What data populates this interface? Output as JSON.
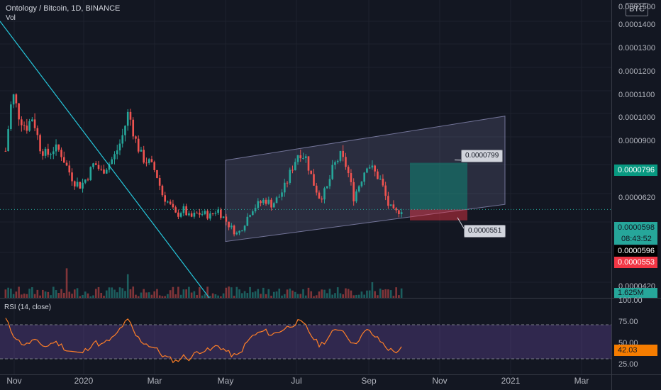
{
  "header": {
    "symbol": "Ontology / Bitcoin, 1D, BINANCE",
    "volume_label": "Vol",
    "rsi_label": "RSI (14, close)"
  },
  "currency_button": "BTC",
  "price_axis": {
    "ticks": [
      "0.0001500",
      "0.0001400",
      "0.0001300",
      "0.0001200",
      "0.0001100",
      "0.0001000",
      "0.0000900",
      "0.0000620",
      "0.0000420"
    ],
    "last_price": "0.0000598",
    "countdown": "08:43:52",
    "tag_596": "0.0000596",
    "target": "0.0000796",
    "stop": "0.0000553",
    "volume_tag": "1.625M"
  },
  "rsi_axis": {
    "ticks": [
      "100.00",
      "75.00",
      "50.00",
      "25.00"
    ],
    "value": "42.03"
  },
  "time_axis": [
    "Nov",
    "2020",
    "Mar",
    "May",
    "Jul",
    "Sep",
    "Nov",
    "2021",
    "Mar"
  ],
  "callouts": {
    "upper": "0.0000799",
    "lower": "0.0000551"
  },
  "colors": {
    "background": "#131722",
    "up": "#26a69a",
    "down": "#ef5350",
    "trendline": "#26c6da",
    "rsi_line": "#ff7f27",
    "rsi_band": "#7e57c2",
    "target_green": "#089981",
    "stop_red": "#f23645"
  },
  "chart_data": {
    "type": "candlestick",
    "title": "Ontology / Bitcoin, 1D, BINANCE",
    "price_range": [
      3.8e-05,
      0.00015
    ],
    "closes_approx": [
      8.5e-05,
      0.00011,
      0.0001,
      9.5e-05,
      0.0001,
      8.7e-05,
      8.3e-05,
      8.6e-05,
      8.5e-05,
      7.8e-05,
      7.2e-05,
      7e-05,
      7.4e-05,
      8e-05,
      7.6e-05,
      7.9e-05,
      8.3e-05,
      9e-05,
      0.000102,
      9e-05,
      8.2e-05,
      8e-05,
      7.6e-05,
      6.6e-05,
      6.2e-05,
      5.7e-05,
      6e-05,
      5.6e-05,
      5.8e-05,
      5.8e-05,
      5.7e-05,
      6e-05,
      5.6e-05,
      5.2e-05,
      4.9e-05,
      5.4e-05,
      6e-05,
      6.2e-05,
      6.4e-05,
      6.2e-05,
      6.5e-05,
      7e-05,
      7.8e-05,
      8.5e-05,
      8.2e-05,
      7.2e-05,
      6.5e-05,
      6.8e-05,
      7.8e-05,
      8.3e-05,
      7.8e-05,
      6.5e-05,
      7.2e-05,
      8e-05,
      7.6e-05,
      7.2e-05,
      6.2e-05,
      5.8e-05,
      6e-05
    ],
    "rsi_approx": [
      77,
      60,
      50,
      46,
      52,
      48,
      44,
      50,
      47,
      40,
      38,
      36,
      42,
      50,
      46,
      51,
      56,
      68,
      76,
      58,
      50,
      46,
      42,
      34,
      30,
      27,
      33,
      30,
      38,
      40,
      40,
      46,
      41,
      35,
      33,
      45,
      56,
      60,
      63,
      58,
      62,
      66,
      70,
      74,
      68,
      55,
      46,
      52,
      62,
      66,
      58,
      46,
      56,
      64,
      57,
      50,
      42,
      38,
      42
    ],
    "channel": {
      "lower_start": 4.6e-05,
      "lower_end": 6.2e-05,
      "upper_start": 8.1e-05,
      "upper_end": 0.0001
    },
    "position": {
      "target": 7.99e-05,
      "entry": 5.98e-05,
      "stop": 5.51e-05
    },
    "rsi_bands": [
      30,
      70
    ]
  }
}
